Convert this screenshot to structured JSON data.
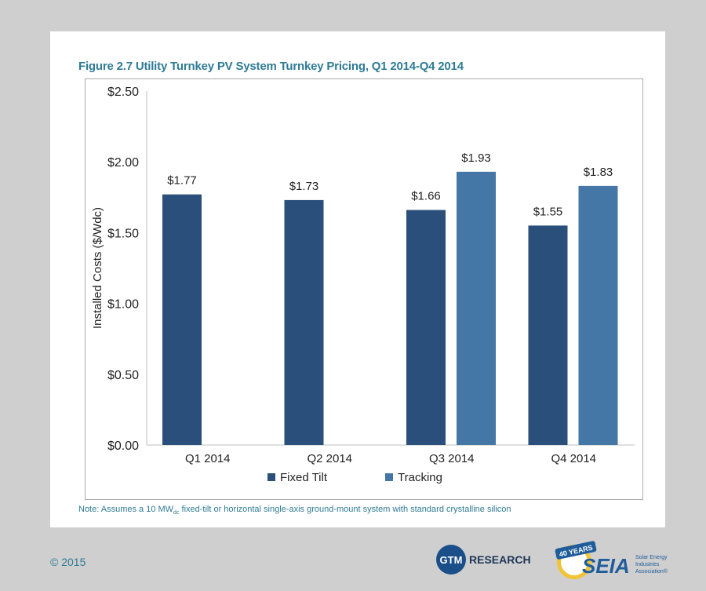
{
  "figure_title": "Figure 2.7  Utility Turnkey PV System Turnkey Pricing, Q1 2014-Q4 2014",
  "note": {
    "prefix": "Note: Assumes a 10 MW",
    "subscript": "dc",
    "suffix": " fixed-tilt or horizontal single-axis ground-mount system with standard crystalline silicon"
  },
  "copyright": "© 2015",
  "logos": {
    "gtm_circle": "GTM",
    "gtm_word": "RESEARCH",
    "seia_badge": "40 YEARS",
    "seia_word": "SEIA",
    "seia_line1": "Solar Energy",
    "seia_line2": "Industries",
    "seia_line3": "Association®"
  },
  "colors": {
    "fixed_tilt": "#2a4f7a",
    "tracking": "#4577a6",
    "title": "#2f7b95"
  },
  "chart_data": {
    "type": "bar",
    "title": "",
    "xlabel": "",
    "ylabel": "Installed Costs ($/Wdc)",
    "ylim": [
      0,
      2.5
    ],
    "yticks": [
      0,
      0.5,
      1.0,
      1.5,
      2.0,
      2.5
    ],
    "ytick_labels": [
      "$0.00",
      "$0.50",
      "$1.00",
      "$1.50",
      "$2.00",
      "$2.50"
    ],
    "categories": [
      "Q1 2014",
      "Q2 2014",
      "Q3 2014",
      "Q4 2014"
    ],
    "series": [
      {
        "name": "Fixed Tilt",
        "color": "#2a4f7a",
        "values": [
          1.77,
          1.73,
          1.66,
          1.55
        ],
        "labels": [
          "$1.77",
          "$1.73",
          "$1.66",
          "$1.55"
        ]
      },
      {
        "name": "Tracking",
        "color": "#4577a6",
        "values": [
          null,
          null,
          1.93,
          1.83
        ],
        "labels": [
          null,
          null,
          "$1.93",
          "$1.83"
        ]
      }
    ],
    "legend_position": "bottom-center",
    "grid": false
  }
}
